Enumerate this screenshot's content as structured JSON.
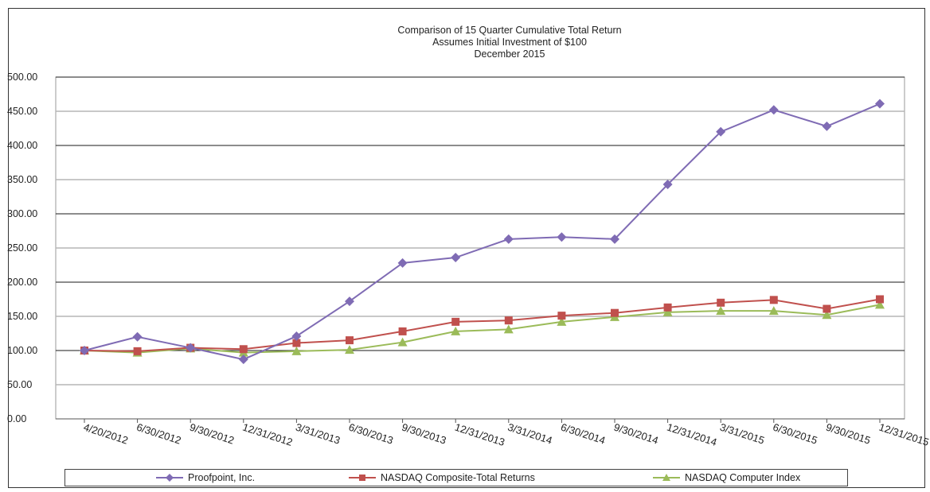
{
  "chart_data": {
    "type": "line",
    "title": "Comparison of 15 Quarter Cumulative Total Return",
    "subtitle": "Assumes Initial Investment of $100",
    "date_label": "December 2015",
    "xlabel": "",
    "ylabel": "",
    "ylim": [
      0,
      500
    ],
    "yticks": [
      "0.00",
      "50.00",
      "100.00",
      "150.00",
      "200.00",
      "250.00",
      "300.00",
      "350.00",
      "400.00",
      "450.00",
      "500.00"
    ],
    "grid": true,
    "legend_position": "bottom",
    "categories": [
      "4/20/2012",
      "6/30/2012",
      "9/30/2012",
      "12/31/2012",
      "3/31/2013",
      "6/30/2013",
      "9/30/2013",
      "12/31/2013",
      "3/31/2014",
      "6/30/2014",
      "9/30/2014",
      "12/31/2014",
      "3/31/2015",
      "6/30/2015",
      "9/30/2015",
      "12/31/2015"
    ],
    "series": [
      {
        "name": "Proofpoint, Inc.",
        "color": "#7f6bb4",
        "marker": "diamond",
        "values": [
          100,
          120,
          104,
          87,
          121,
          172,
          228,
          236,
          263,
          266,
          263,
          343,
          420,
          452,
          428,
          461
        ]
      },
      {
        "name": "NASDAQ Composite-Total Returns",
        "color": "#c0504d",
        "marker": "square",
        "values": [
          100,
          99,
          104,
          102,
          111,
          115,
          128,
          142,
          144,
          151,
          155,
          163,
          170,
          174,
          161,
          175
        ]
      },
      {
        "name": "NASDAQ Computer Index",
        "color": "#9bbb59",
        "marker": "triangle",
        "values": [
          100,
          97,
          103,
          97,
          99,
          101,
          112,
          128,
          131,
          142,
          149,
          156,
          158,
          158,
          152,
          167
        ]
      }
    ]
  }
}
